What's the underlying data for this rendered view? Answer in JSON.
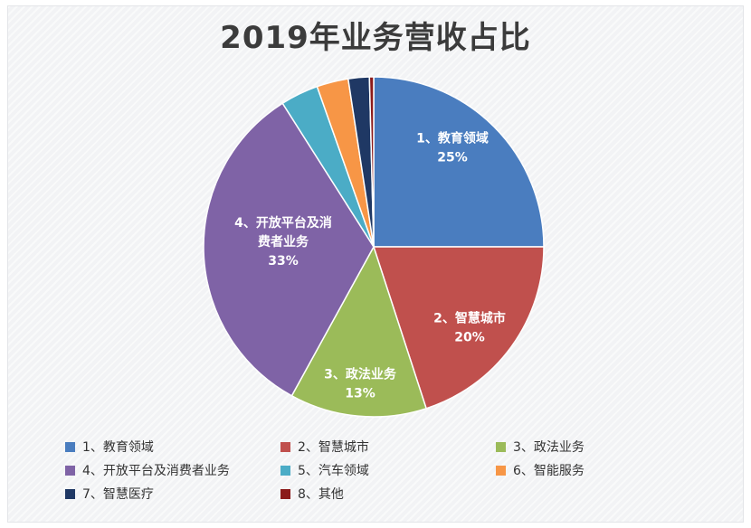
{
  "chart_data": {
    "type": "pie",
    "title": "2019年业务营收占比",
    "categories": [
      "1、教育领域",
      "2、智慧城市",
      "3、政法业务",
      "4、开放平台及消费者业务",
      "5、汽车领域",
      "6、智能服务",
      "7、智慧医疗",
      "8、其他"
    ],
    "values": [
      25,
      20,
      13,
      33,
      3.6,
      3,
      2,
      0.4
    ],
    "value_labels": [
      "25%",
      "20%",
      "13%",
      "33%",
      "",
      "",
      "",
      ""
    ],
    "slice_label_lines": [
      [
        "1、教育领域",
        "25%"
      ],
      [
        "2、智慧城市",
        "20%"
      ],
      [
        "3、政法业务",
        "13%"
      ],
      [
        "4、开放平台及消",
        "费者业务",
        "33%"
      ],
      [],
      [],
      [],
      []
    ],
    "colors": [
      "#4a7dbf",
      "#c0504d",
      "#9bbb59",
      "#7f63a6",
      "#4bacc6",
      "#f79646",
      "#1f3864",
      "#8b1a1a"
    ],
    "legend": {
      "placement": "bottom",
      "items": [
        "1、教育领域",
        "2、智慧城市",
        "3、政法业务",
        "4、开放平台及消费者业务",
        "5、汽车领域",
        "6、智能服务",
        "7、智慧医疗",
        "8、其他"
      ]
    }
  }
}
